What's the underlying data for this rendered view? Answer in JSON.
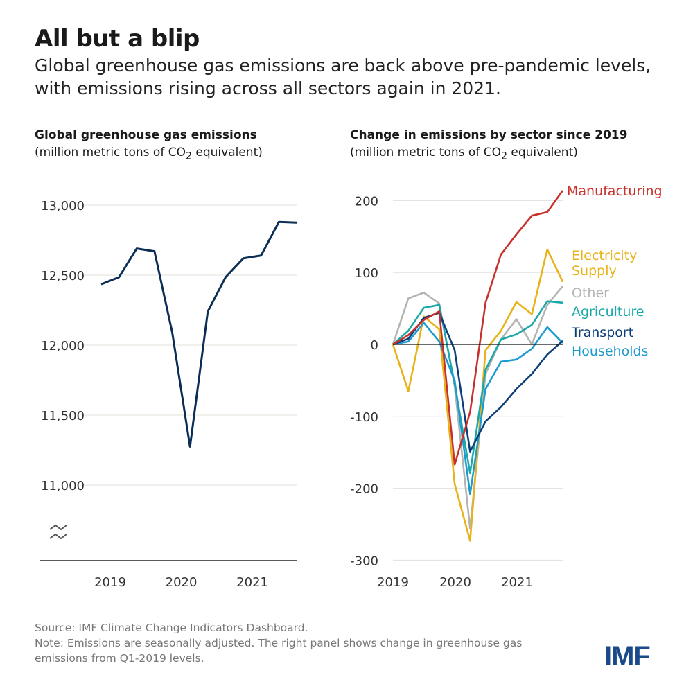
{
  "title": "All but a blip",
  "subtitle": "Global greenhouse gas emissions are back above pre-pandemic levels, with emissions rising across all sectors again in 2021.",
  "notes": {
    "source": "Source: IMF Climate Change Indicators Dashboard.",
    "note": "Note: Emissions are seasonally adjusted. The right panel shows change in greenhouse gas emissions from Q1-2019 levels."
  },
  "logo": "IMF",
  "chart_data": [
    {
      "type": "line",
      "title": "Global greenhouse gas  emissions",
      "unit_pre": "(million metric tons of CO",
      "unit_sub": "2",
      "unit_post": " equivalent)",
      "x_ticks": [
        "2019",
        "2020",
        "2021"
      ],
      "yticks": [
        "13,000",
        "12,500",
        "12,000",
        "11,500",
        "11,000"
      ],
      "ytick_values": [
        13000,
        12500,
        12000,
        11500,
        11000
      ],
      "ylim": [
        10450,
        13000
      ],
      "axis_break": true,
      "grid": true,
      "color": "#0b2e55",
      "x": [
        "2019Q1",
        "2019Q2",
        "2019Q3",
        "2019Q4",
        "2020Q1",
        "2020Q2",
        "2020Q3",
        "2020Q4",
        "2021Q1",
        "2021Q2",
        "2021Q3",
        "2021Q4"
      ],
      "values": [
        12435,
        12485,
        12690,
        12670,
        12090,
        11275,
        12240,
        12485,
        12620,
        12640,
        12880,
        12875
      ]
    },
    {
      "type": "line",
      "title": "Change in emissions by sector since 2019",
      "unit_pre": "(million metric tons of CO",
      "unit_sub": "2",
      "unit_post": " equivalent)",
      "x_ticks": [
        "2019",
        "2020",
        "2021"
      ],
      "yticks": [
        "200",
        "100",
        "0",
        "-100",
        "-200",
        "-300"
      ],
      "ytick_values": [
        200,
        100,
        0,
        -100,
        -200,
        -300
      ],
      "ylim": [
        -300,
        220
      ],
      "grid": true,
      "x": [
        "2019Q1",
        "2019Q2",
        "2019Q3",
        "2019Q4",
        "2020Q1",
        "2020Q2",
        "2020Q3",
        "2020Q4",
        "2021Q1",
        "2021Q2",
        "2021Q3",
        "2021Q4"
      ],
      "series": [
        {
          "name": "Manufacturing",
          "color": "#c8312b",
          "values": [
            0,
            13,
            34,
            46,
            -167,
            -94,
            58,
            125,
            153,
            179,
            184,
            214
          ]
        },
        {
          "name": "Electricity Supply",
          "name_lines": [
            "Electricity",
            "Supply"
          ],
          "color": "#e8b218",
          "values": [
            0,
            -65,
            39,
            21,
            -194,
            -273,
            -8,
            19,
            59,
            42,
            132,
            87
          ]
        },
        {
          "name": "Other",
          "color": "#b3b3b3",
          "values": [
            0,
            64,
            72,
            57,
            -58,
            -256,
            -41,
            7,
            35,
            0,
            55,
            81
          ]
        },
        {
          "name": "Agriculture",
          "color": "#1aa8a8",
          "values": [
            0,
            19,
            51,
            55,
            -55,
            -179,
            -35,
            7,
            14,
            27,
            60,
            58
          ]
        },
        {
          "name": "Transport",
          "color": "#0c3f7a",
          "values": [
            0,
            8,
            37,
            44,
            -8,
            -149,
            -107,
            -87,
            -62,
            -41,
            -14,
            5
          ]
        },
        {
          "name": "Households",
          "color": "#1d9bd1",
          "values": [
            0,
            4,
            30,
            4,
            -50,
            -208,
            -62,
            -24,
            -21,
            -6,
            24,
            2
          ]
        }
      ]
    }
  ]
}
